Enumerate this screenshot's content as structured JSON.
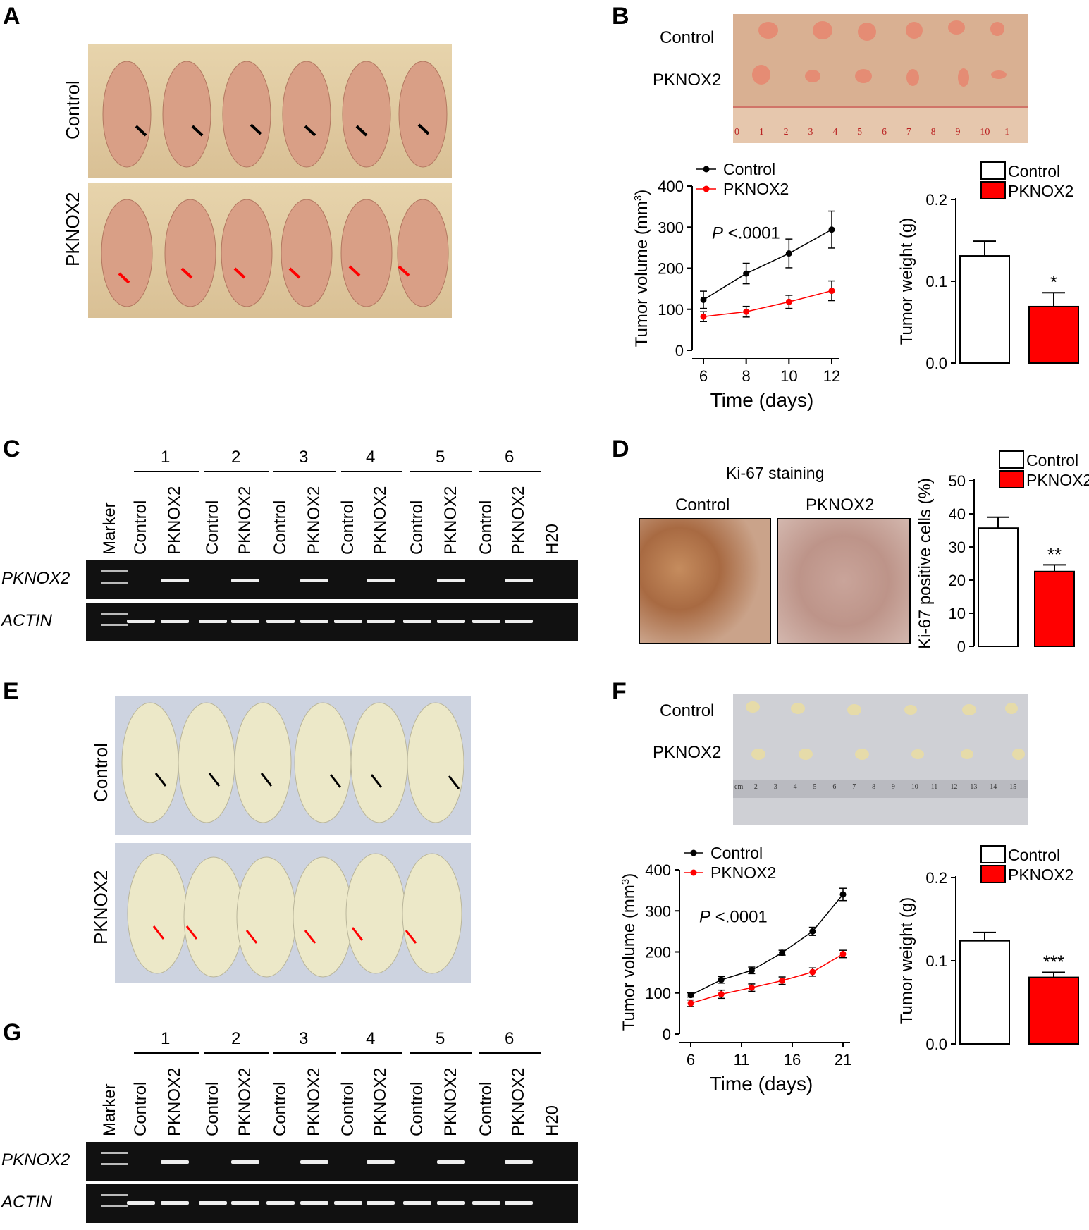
{
  "panels": {
    "A": {
      "letter": "A",
      "row_labels": [
        "Control",
        "PKNOX2"
      ]
    },
    "B": {
      "letter": "B",
      "photo_labels": [
        "Control",
        "PKNOX2"
      ],
      "ruler_numbers": [
        "0",
        "1",
        "2",
        "3",
        "4",
        "5",
        "6",
        "7",
        "8",
        "9",
        "10",
        "1"
      ]
    },
    "C": {
      "letter": "C"
    },
    "D": {
      "letter": "D",
      "title": "Ki-67 staining",
      "image_labels": [
        "Control",
        "PKNOX2"
      ]
    },
    "E": {
      "letter": "E",
      "row_labels": [
        "Control",
        "PKNOX2"
      ]
    },
    "F": {
      "letter": "F",
      "photo_labels": [
        "Control",
        "PKNOX2"
      ],
      "ruler_numbers": [
        "cm",
        "2",
        "3",
        "4",
        "5",
        "6",
        "7",
        "8",
        "9",
        "10",
        "11",
        "12",
        "13",
        "14",
        "15"
      ]
    },
    "G": {
      "letter": "G"
    }
  },
  "gels": {
    "C": {
      "groups": [
        "1",
        "2",
        "3",
        "4",
        "5",
        "6"
      ],
      "lanes": [
        "Marker",
        "Control",
        "PKNOX2",
        "Control",
        "PKNOX2",
        "Control",
        "PKNOX2",
        "Control",
        "PKNOX2",
        "Control",
        "PKNOX2",
        "Control",
        "PKNOX2",
        "H20"
      ],
      "rows": [
        "PKNOX2",
        "ACTIN"
      ]
    },
    "G": {
      "groups": [
        "1",
        "2",
        "3",
        "4",
        "5",
        "6"
      ],
      "lanes": [
        "Marker",
        "Control",
        "PKNOX2",
        "Control",
        "PKNOX2",
        "Control",
        "PKNOX2",
        "Control",
        "PKNOX2",
        "Control",
        "PKNOX2",
        "Control",
        "PKNOX2",
        "H20"
      ],
      "rows": [
        "PKNOX2",
        "ACTIN"
      ]
    }
  },
  "colors": {
    "control": "#000000",
    "pknox2": "#ff0000"
  },
  "chart_data": [
    {
      "id": "B-volume",
      "type": "line",
      "x": [
        6,
        8,
        10,
        12
      ],
      "series": [
        {
          "name": "Control",
          "values": [
            123,
            187,
            236,
            294
          ],
          "err": [
            21,
            25,
            35,
            45
          ],
          "color": "#000000"
        },
        {
          "name": "PKNOX2",
          "values": [
            82,
            94,
            118,
            145
          ],
          "err": [
            12,
            13,
            16,
            24
          ],
          "color": "#ff0000"
        }
      ],
      "xlabel": "Time (days)",
      "ylabel": "Tumor volume (mm3)",
      "xticks": [
        "6",
        "8",
        "10",
        "12"
      ],
      "yticks": [
        "0",
        "100",
        "200",
        "300",
        "400"
      ],
      "ylim": [
        0,
        400
      ],
      "annotation": "P <.0001",
      "legend": "top-left"
    },
    {
      "id": "B-weight",
      "type": "bar",
      "categories": [
        "Control",
        "PKNOX2"
      ],
      "values": [
        0.131,
        0.069
      ],
      "err": [
        0.018,
        0.017
      ],
      "ylabel": "Tumor weight (g)",
      "yticks": [
        "0.0",
        "0.1",
        "0.2"
      ],
      "ylim": [
        0,
        0.2
      ],
      "significance": [
        "",
        "*"
      ],
      "legend": "top"
    },
    {
      "id": "D-ki67",
      "type": "bar",
      "categories": [
        "Control",
        "PKNOX2"
      ],
      "values": [
        35.7,
        22.6
      ],
      "err": [
        3.3,
        2.0
      ],
      "ylabel": "Ki-67 positive cells (%)",
      "yticks": [
        "0",
        "10",
        "20",
        "30",
        "40",
        "50"
      ],
      "ylim": [
        0,
        50
      ],
      "significance": [
        "",
        "**"
      ],
      "legend": "top"
    },
    {
      "id": "F-volume",
      "type": "line",
      "x": [
        6,
        9,
        12,
        15,
        18,
        21
      ],
      "series": [
        {
          "name": "Control",
          "values": [
            95,
            132,
            155,
            198,
            250,
            340
          ],
          "err": [
            5,
            8,
            8,
            6,
            10,
            15
          ],
          "color": "#000000"
        },
        {
          "name": "PKNOX2",
          "values": [
            75,
            97,
            113,
            130,
            151,
            195
          ],
          "err": [
            8,
            10,
            9,
            9,
            10,
            9
          ],
          "color": "#ff0000"
        }
      ],
      "xlabel": "Time (days)",
      "ylabel": "Tumor volume (mm3)",
      "xticks": [
        "6",
        "11",
        "16",
        "21"
      ],
      "yticks": [
        "0",
        "100",
        "200",
        "300",
        "400"
      ],
      "ylim": [
        0,
        400
      ],
      "annotation": "P <.0001",
      "legend": "top-left"
    },
    {
      "id": "F-weight",
      "type": "bar",
      "categories": [
        "Control",
        "PKNOX2"
      ],
      "values": [
        0.124,
        0.08
      ],
      "err": [
        0.01,
        0.006
      ],
      "ylabel": "Tumor weight (g)",
      "yticks": [
        "0.0",
        "0.1",
        "0.2"
      ],
      "ylim": [
        0,
        0.2
      ],
      "significance": [
        "",
        "***"
      ],
      "legend": "top"
    }
  ]
}
